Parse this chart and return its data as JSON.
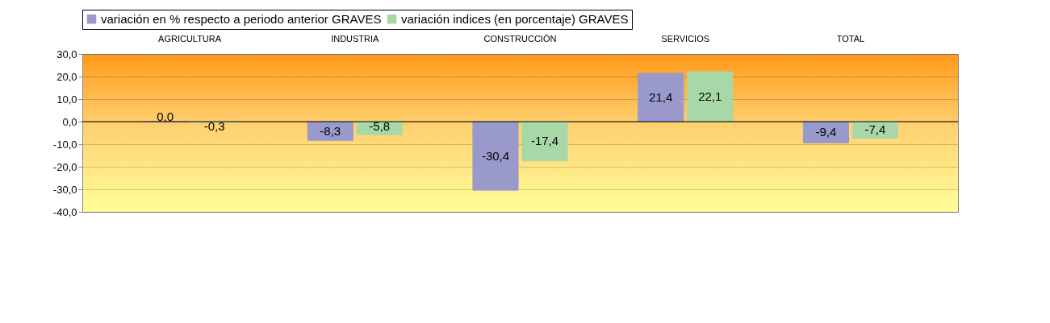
{
  "chart_data": {
    "type": "bar",
    "categories": [
      "AGRICULTURA",
      "INDUSTRIA",
      "CONSTRUCCIÓN",
      "SERVICIOS",
      "TOTAL"
    ],
    "series": [
      {
        "name": "variación en % respecto a periodo anterior GRAVES",
        "color": "#9999cc",
        "values": [
          0.0,
          -8.3,
          -30.4,
          21.4,
          -9.4
        ],
        "value_labels": [
          "0,0",
          "-8,3",
          "-30,4",
          "21,4",
          "-9,4"
        ]
      },
      {
        "name": "variación indices (en porcentaje) GRAVES",
        "color": "#a8d8a8",
        "values": [
          -0.3,
          -5.8,
          -17.4,
          22.1,
          -7.4
        ],
        "value_labels": [
          "-0,3",
          "-5,8",
          "-17,4",
          "22,1",
          "-7,4"
        ]
      }
    ],
    "ylim": [
      -40,
      30
    ],
    "yticks": [
      {
        "value": -40,
        "label": "-40,0"
      },
      {
        "value": -30,
        "label": "-30,0"
      },
      {
        "value": -20,
        "label": "-20,0"
      },
      {
        "value": -10,
        "label": "-10,0"
      },
      {
        "value": 0,
        "label": "0,0"
      },
      {
        "value": 10,
        "label": "10,0"
      },
      {
        "value": 20,
        "label": "20,0"
      },
      {
        "value": 30,
        "label": "30,0"
      }
    ],
    "grid": "y",
    "legend": "top"
  }
}
